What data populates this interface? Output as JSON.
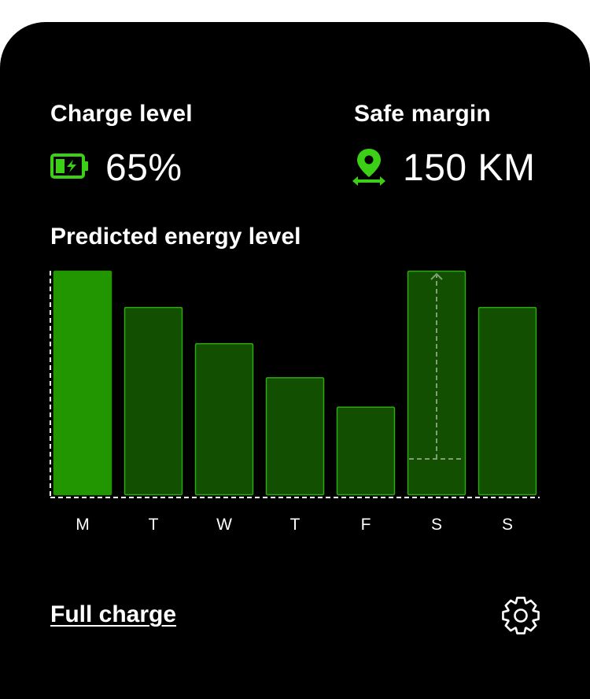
{
  "charge": {
    "label": "Charge level",
    "value": "65%",
    "icon": "battery-charging-icon"
  },
  "margin": {
    "label": "Safe margin",
    "value": "150 KM",
    "icon": "location-range-icon"
  },
  "chart": {
    "title": "Predicted energy level"
  },
  "chart_data": {
    "type": "bar",
    "categories": [
      "M",
      "T",
      "W",
      "T",
      "F",
      "S",
      "S"
    ],
    "values": [
      100,
      84,
      68,
      53,
      40,
      100,
      84
    ],
    "highlighted_index": 0,
    "selected_index": 5,
    "selected_marker_value": 17,
    "ylim": [
      0,
      100
    ],
    "grid": false,
    "colors": {
      "highlight_fill": "#229600",
      "bar_fill": "#134f00",
      "bar_stroke": "#2ea80f",
      "axis": "#ffffff",
      "marker": "#7f9f77"
    }
  },
  "actions": {
    "full_charge_label": "Full charge",
    "settings_icon": "gear-icon"
  },
  "colors": {
    "background": "#000000",
    "accent": "#3bd016",
    "text": "#ffffff"
  }
}
